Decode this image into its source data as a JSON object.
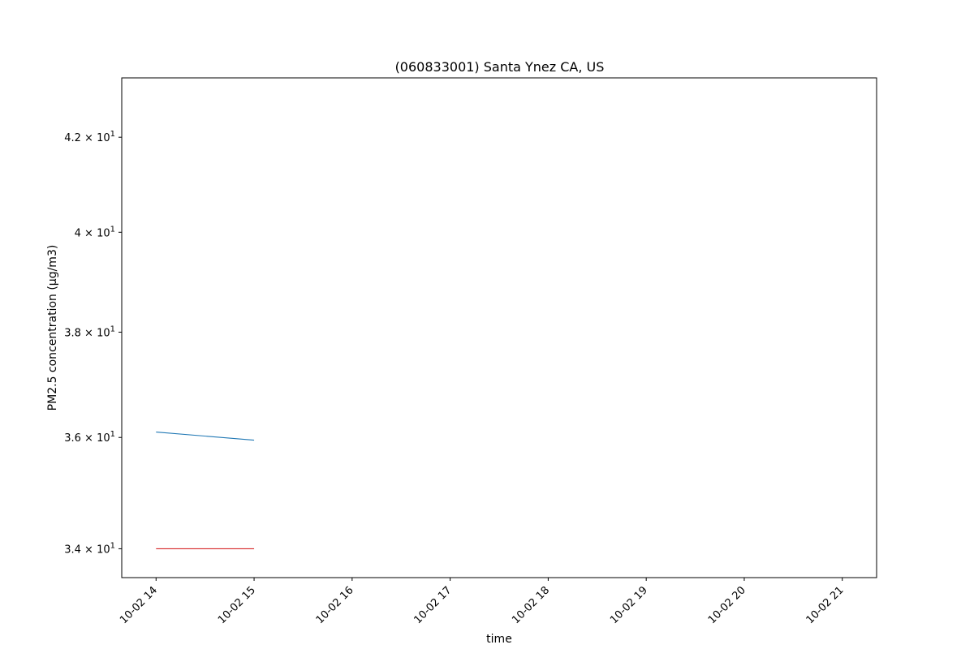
{
  "chart_data": {
    "type": "line",
    "title": "(060833001) Santa Ynez CA, US",
    "xlabel": "time",
    "ylabel": "PM2.5 concentration (µg/m3)",
    "yscale": "log",
    "ylim": [
      33.5,
      43.3
    ],
    "y_ticks": [
      {
        "value": 34,
        "mantissa": "3.4",
        "base": "10",
        "exp": "1"
      },
      {
        "value": 36,
        "mantissa": "3.6",
        "base": "10",
        "exp": "1"
      },
      {
        "value": 38,
        "mantissa": "3.8",
        "base": "10",
        "exp": "1"
      },
      {
        "value": 40,
        "mantissa": "4",
        "base": "10",
        "exp": "1"
      },
      {
        "value": 42,
        "mantissa": "4.2",
        "base": "10",
        "exp": "1"
      }
    ],
    "xlim": [
      "10-02 13:39",
      "10-02 21:21"
    ],
    "x_ticks": [
      "10-02 14",
      "10-02 15",
      "10-02 16",
      "10-02 17",
      "10-02 18",
      "10-02 19",
      "10-02 20",
      "10-02 21"
    ],
    "grid": false,
    "legend": "none",
    "series": [
      {
        "color": "#1f77b4",
        "x": [
          "10-02 14",
          "10-02 15"
        ],
        "y": [
          36.1,
          35.95
        ]
      },
      {
        "color": "#d62728",
        "x": [
          "10-02 14",
          "10-02 15"
        ],
        "y": [
          34.0,
          34.0
        ]
      }
    ]
  }
}
